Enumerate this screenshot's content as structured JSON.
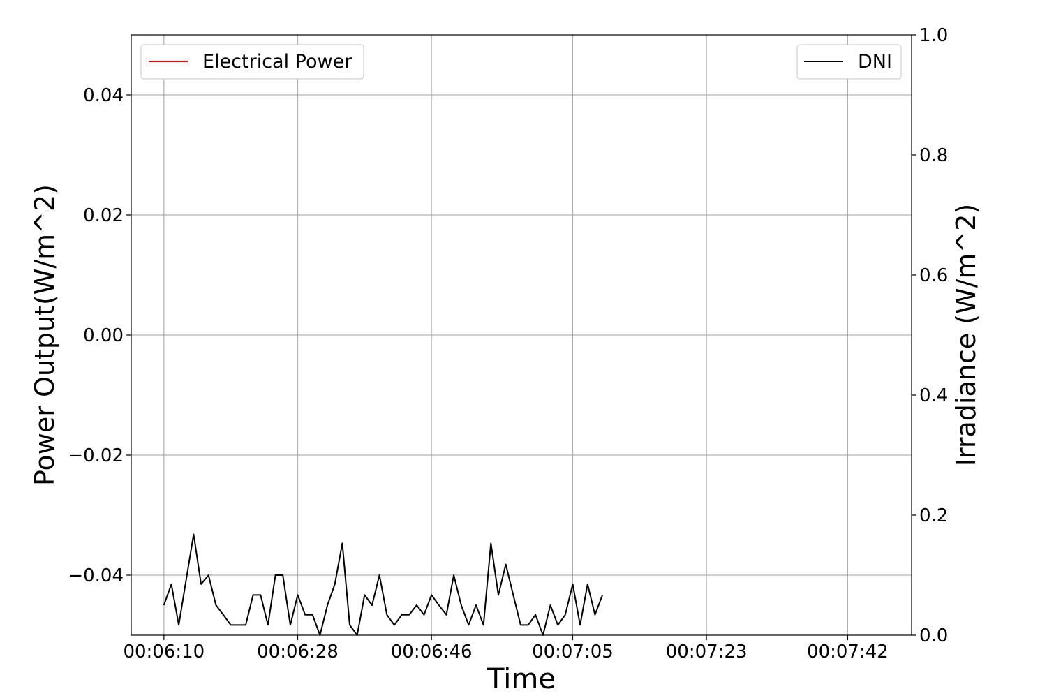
{
  "chart_data": {
    "type": "line",
    "title": "",
    "xlabel": "Time",
    "ylabel_left": "Power Output(W/m^2)",
    "ylabel_right": "Irradiance (W/m^2)",
    "x_tick_labels": [
      "00:06:10",
      "00:06:28",
      "00:06:46",
      "00:07:05",
      "00:07:23",
      "00:07:42"
    ],
    "x_tick_seconds": [
      370,
      388,
      406,
      425,
      443,
      462
    ],
    "xlim_seconds": [
      365.6,
      470.6
    ],
    "ylim_left": [
      -0.05,
      0.05
    ],
    "yticks_left": [
      "0.04",
      "0.02",
      "0.00",
      "−0.02",
      "−0.04"
    ],
    "yticks_left_values": [
      0.04,
      0.02,
      0.0,
      -0.02,
      -0.04
    ],
    "ylim_right": [
      0.0,
      1.0
    ],
    "yticks_right": [
      "1.0",
      "0.8",
      "0.6",
      "0.4",
      "0.2",
      "0.0"
    ],
    "yticks_right_values": [
      1.0,
      0.8,
      0.6,
      0.4,
      0.2,
      0.0
    ],
    "grid": true,
    "legend_left": {
      "placement": "top-left",
      "label": "Electrical Power",
      "color": "#ff0000"
    },
    "legend_right": {
      "placement": "top-right",
      "label": "DNI",
      "color": "#000000"
    },
    "series": [
      {
        "name": "Electrical Power",
        "axis": "left",
        "color": "#ff0000",
        "values": []
      },
      {
        "name": "DNI",
        "axis": "right",
        "color": "#000000",
        "x_start_seconds": 370,
        "x_step_seconds": 1,
        "values": [
          0.05,
          0.085,
          0.017,
          0.093,
          0.168,
          0.085,
          0.1,
          0.05,
          0.034,
          0.017,
          0.017,
          0.017,
          0.067,
          0.067,
          0.017,
          0.1,
          0.1,
          0.017,
          0.067,
          0.034,
          0.034,
          0.0,
          0.05,
          0.085,
          0.153,
          0.017,
          0.0,
          0.067,
          0.05,
          0.1,
          0.034,
          0.017,
          0.034,
          0.034,
          0.05,
          0.034,
          0.067,
          0.05,
          0.034,
          0.1,
          0.05,
          0.017,
          0.05,
          0.017,
          0.153,
          0.067,
          0.118,
          0.067,
          0.017,
          0.017,
          0.034,
          0.0,
          0.05,
          0.017,
          0.034,
          0.085,
          0.017,
          0.085,
          0.034,
          0.067
        ]
      }
    ]
  }
}
